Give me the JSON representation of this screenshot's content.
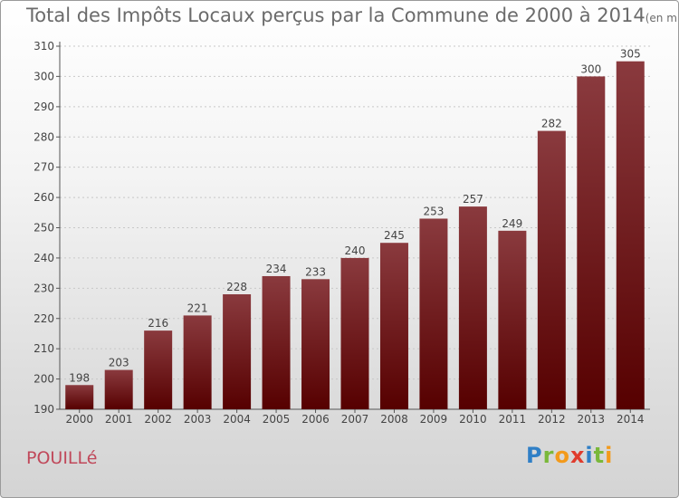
{
  "chart_data": {
    "type": "bar",
    "title": "Total des Impôts Locaux perçus par la Commune de 2000 à 2014",
    "unit_label": "(en milliers d'€)",
    "categories": [
      "2000",
      "2001",
      "2002",
      "2003",
      "2004",
      "2005",
      "2006",
      "2007",
      "2008",
      "2009",
      "2010",
      "2011",
      "2012",
      "2013",
      "2014"
    ],
    "values": [
      198,
      203,
      216,
      221,
      228,
      234,
      233,
      240,
      245,
      253,
      257,
      249,
      282,
      300,
      305
    ],
    "ylim": [
      190,
      310
    ],
    "yticks": [
      190,
      200,
      210,
      220,
      230,
      240,
      250,
      260,
      270,
      280,
      290,
      300,
      310
    ],
    "xlabel": "",
    "ylabel": "",
    "grid": true,
    "colors": {
      "bar_top": "#8a3a3e",
      "bar_bottom": "#560000",
      "text": "#444444",
      "grid": "#c8c8c8"
    }
  },
  "footer": {
    "commune": "POUILLé",
    "logo_letters": [
      {
        "char": "P",
        "color": "#2f7fc6"
      },
      {
        "char": "r",
        "color": "#7ab83a"
      },
      {
        "char": "o",
        "color": "#f39a1b"
      },
      {
        "char": "x",
        "color": "#e03c2d"
      },
      {
        "char": "i",
        "color": "#2f7fc6"
      },
      {
        "char": "t",
        "color": "#7ab83a"
      },
      {
        "char": "i",
        "color": "#f39a1b"
      }
    ]
  }
}
